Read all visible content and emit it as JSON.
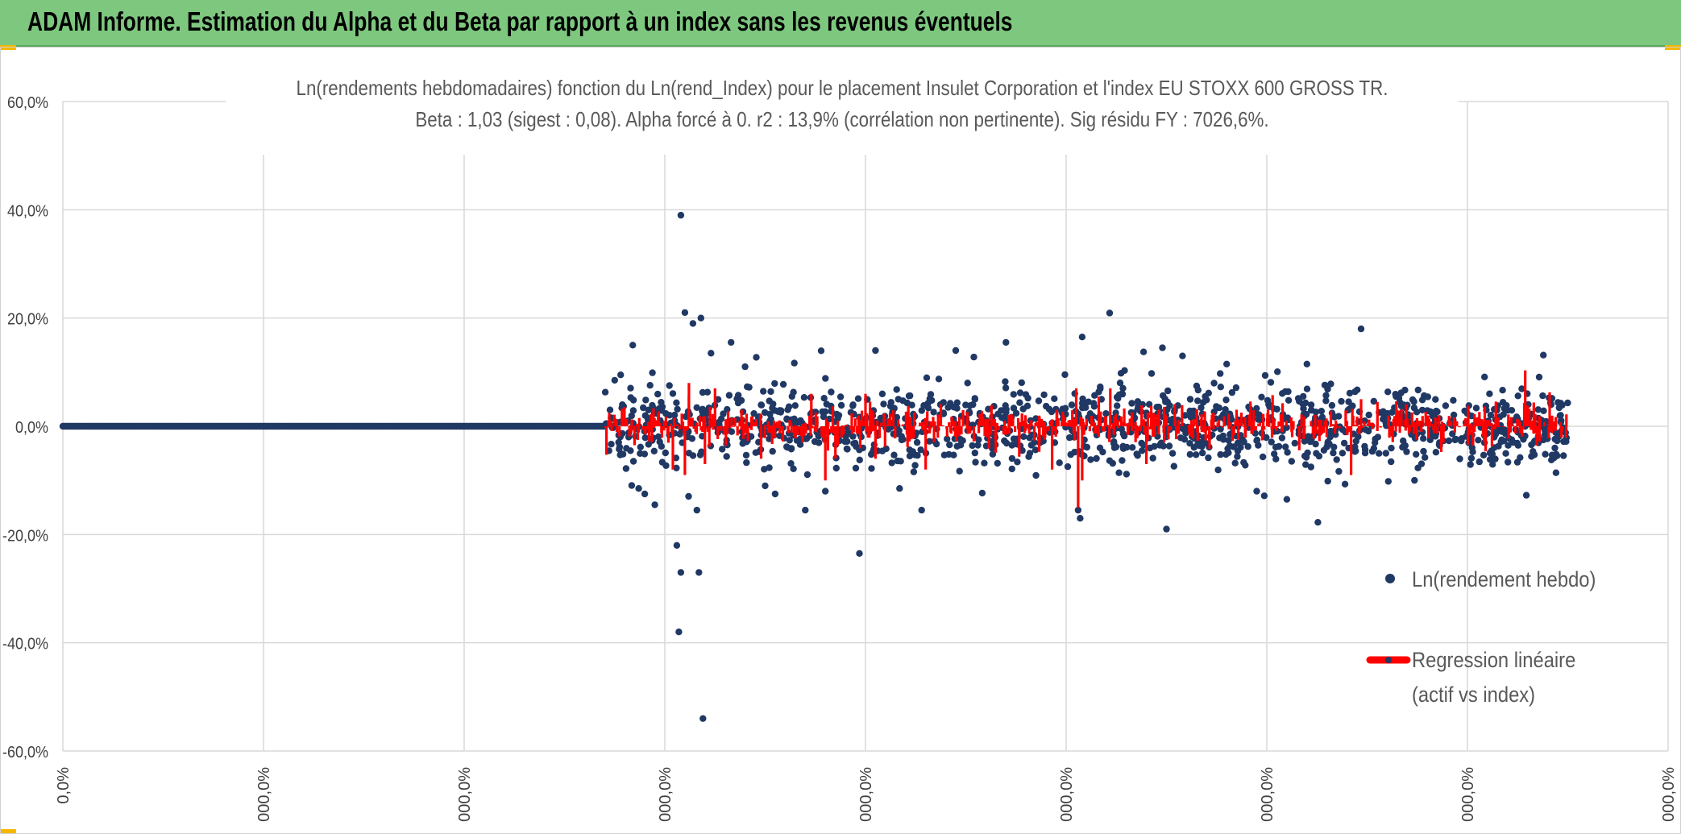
{
  "banner": {
    "title": "ADAM Informe. Estimation du Alpha et du Beta par rapport à un index sans les revenus éventuels"
  },
  "colors": {
    "banner": "#7dc77e",
    "points": "#203864",
    "regression": "#ff0000",
    "grid": "#d9d9d9",
    "accent": "#f5b800"
  },
  "chart_data": {
    "type": "scatter",
    "title_line1": "Ln(rendements hebdomadaires) fonction du Ln(rend_Index) pour le placement Insulet Corporation et l'index EU STOXX 600 GROSS TR.",
    "title_line2": "Beta : 1,03 (sigest : 0,08). Alpha forcé à 0. r2 : 13,9% (corrélation non pertinente). Sig résidu FY : 7026,6%.",
    "ylim": [
      -60,
      60
    ],
    "y_step": 20,
    "yticks": [
      "60,0%",
      "40,0%",
      "20,0%",
      "0,0%",
      "-20,0%",
      "-40,0%",
      "-60,0%"
    ],
    "xticks": [
      "0,0%",
      "000,0%",
      "000,0%",
      "000,0%",
      "000,0%",
      "000,0%",
      "000,0%",
      "000,0%",
      "000,0%"
    ],
    "x_range_steps": [
      0,
      8
    ],
    "stats": {
      "beta": 1.03,
      "sigest": 0.08,
      "alpha": 0,
      "r2_pct": 13.9,
      "sig_residu_pct": 7026.6
    },
    "series": [
      {
        "name": "Ln(rendement hebdo)",
        "zero_run": {
          "x_start": 0,
          "x_end": 2.7,
          "y": 0
        },
        "cloud": {
          "x_start": 2.7,
          "x_end": 7.5,
          "count": 1300,
          "typical_spread": 3.5,
          "seed": 7
        },
        "outliers": [
          {
            "x": 3.08,
            "y": 39
          },
          {
            "x": 3.1,
            "y": 21
          },
          {
            "x": 3.14,
            "y": 19
          },
          {
            "x": 3.18,
            "y": 20
          },
          {
            "x": 3.06,
            "y": -22
          },
          {
            "x": 3.08,
            "y": -27
          },
          {
            "x": 3.17,
            "y": -27
          },
          {
            "x": 3.07,
            "y": -38
          },
          {
            "x": 3.19,
            "y": -54
          },
          {
            "x": 3.16,
            "y": -15.5
          },
          {
            "x": 2.84,
            "y": 15
          },
          {
            "x": 3.33,
            "y": 15.5
          },
          {
            "x": 3.23,
            "y": 13.5
          },
          {
            "x": 3.4,
            "y": 11
          },
          {
            "x": 3.97,
            "y": -23.5
          },
          {
            "x": 4.05,
            "y": 14
          },
          {
            "x": 4.45,
            "y": 14
          },
          {
            "x": 4.7,
            "y": 15.5
          },
          {
            "x": 5.08,
            "y": 16.5
          },
          {
            "x": 5.07,
            "y": -17
          },
          {
            "x": 5.06,
            "y": -15.5
          },
          {
            "x": 5.5,
            "y": -19
          },
          {
            "x": 5.48,
            "y": 14.5
          },
          {
            "x": 5.58,
            "y": 13
          },
          {
            "x": 6.47,
            "y": 18
          },
          {
            "x": 5.8,
            "y": 11.5
          },
          {
            "x": 6.2,
            "y": 11.5
          },
          {
            "x": 6.1,
            "y": -13.5
          },
          {
            "x": 2.95,
            "y": -14.5
          },
          {
            "x": 2.87,
            "y": -11.5
          },
          {
            "x": 2.9,
            "y": -12.5
          },
          {
            "x": 3.55,
            "y": -12.5
          },
          {
            "x": 3.7,
            "y": -15.5
          },
          {
            "x": 3.5,
            "y": -11
          },
          {
            "x": 4.17,
            "y": -11.5
          },
          {
            "x": 4.28,
            "y": -15.5
          },
          {
            "x": 5.95,
            "y": -12
          },
          {
            "x": 3.8,
            "y": -12
          },
          {
            "x": 2.78,
            "y": 9.5
          },
          {
            "x": 2.75,
            "y": 8.5
          }
        ]
      },
      {
        "name": "Regression linéaire (actif vs index)",
        "beta": 1.03,
        "x_start": 2.7,
        "x_end": 7.5,
        "count": 900,
        "typical_spread": 1.6,
        "seed": 13,
        "spikes": [
          {
            "x": 3.1,
            "y": -9
          },
          {
            "x": 3.12,
            "y": 8
          },
          {
            "x": 3.04,
            "y": -8
          },
          {
            "x": 3.25,
            "y": 7
          },
          {
            "x": 3.2,
            "y": -7
          },
          {
            "x": 3.8,
            "y": -10
          },
          {
            "x": 3.85,
            "y": -6
          },
          {
            "x": 3.73,
            "y": 6
          },
          {
            "x": 5.06,
            "y": -15
          },
          {
            "x": 5.08,
            "y": -10
          },
          {
            "x": 5.05,
            "y": 7
          },
          {
            "x": 5.22,
            "y": 7
          },
          {
            "x": 6.42,
            "y": -9
          },
          {
            "x": 6.47,
            "y": 5
          },
          {
            "x": 4.3,
            "y": -8
          },
          {
            "x": 4.93,
            "y": -8
          },
          {
            "x": 4.05,
            "y": -6
          },
          {
            "x": 4.0,
            "y": 6
          },
          {
            "x": 5.4,
            "y": -7
          },
          {
            "x": 3.48,
            "y": -6
          }
        ]
      }
    ],
    "legend": {
      "position": "right",
      "point_label": "Ln(rendement hebdo)",
      "line_label1": "Regression linéaire",
      "line_label2": "(actif vs index)"
    }
  }
}
